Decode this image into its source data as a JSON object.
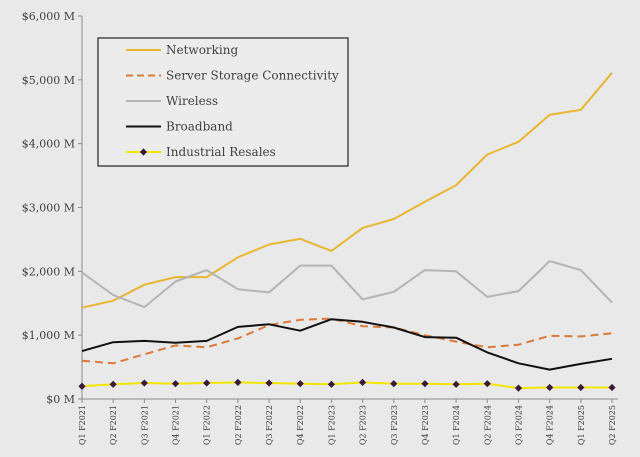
{
  "chart_data": {
    "type": "line",
    "title": "",
    "xlabel": "",
    "ylabel": "",
    "x": [
      "Q1 F2021",
      "Q2 F2021",
      "Q3 F2021",
      "Q4 F2021",
      "Q1 F2022",
      "Q2 F2022",
      "Q3 F2022",
      "Q4 F2022",
      "Q1 F2023",
      "Q2 F2023",
      "Q3 F2023",
      "Q4 F2023",
      "Q1 F2024",
      "Q2 F2024",
      "Q3 F2024",
      "Q4 F2024",
      "Q1 F2025",
      "Q2 F2025"
    ],
    "y_ticks": [
      "$0 M",
      "$1,000 M",
      "$2,000 M",
      "$3,000 M",
      "$4,000 M",
      "$5,000 M",
      "$6,000 M"
    ],
    "ylim": [
      0,
      6000
    ],
    "grid": false,
    "legend_position": "top-left",
    "series": [
      {
        "name": "Networking",
        "color": "#e8b630",
        "style": "solid",
        "values": [
          1430,
          1540,
          1790,
          1910,
          1910,
          2220,
          2420,
          2510,
          2320,
          2680,
          2820,
          3090,
          3350,
          3830,
          4030,
          4450,
          4530,
          5110
        ]
      },
      {
        "name": "Server Storage Connectivity",
        "color": "#d97a3a",
        "style": "dashed",
        "values": [
          600,
          560,
          700,
          840,
          810,
          950,
          1160,
          1240,
          1260,
          1140,
          1120,
          1000,
          900,
          810,
          850,
          990,
          980,
          1030
        ]
      },
      {
        "name": "Wireless",
        "color": "#b4b4b4",
        "style": "solid",
        "values": [
          1980,
          1630,
          1440,
          1840,
          2020,
          1720,
          1670,
          2090,
          2090,
          1560,
          1680,
          2020,
          2000,
          1600,
          1690,
          2160,
          2020,
          1510
        ]
      },
      {
        "name": "Broadband",
        "color": "#111111",
        "style": "solid",
        "values": [
          750,
          890,
          910,
          880,
          910,
          1130,
          1170,
          1070,
          1250,
          1210,
          1120,
          970,
          960,
          730,
          560,
          460,
          550,
          630
        ]
      },
      {
        "name": "Industrial Resales",
        "color": "#f2e600",
        "style": "solid-markers",
        "marker_color": "#3a1a3a",
        "values": [
          200,
          230,
          250,
          240,
          250,
          260,
          250,
          240,
          230,
          260,
          240,
          240,
          230,
          240,
          170,
          180,
          180,
          180
        ]
      }
    ]
  }
}
